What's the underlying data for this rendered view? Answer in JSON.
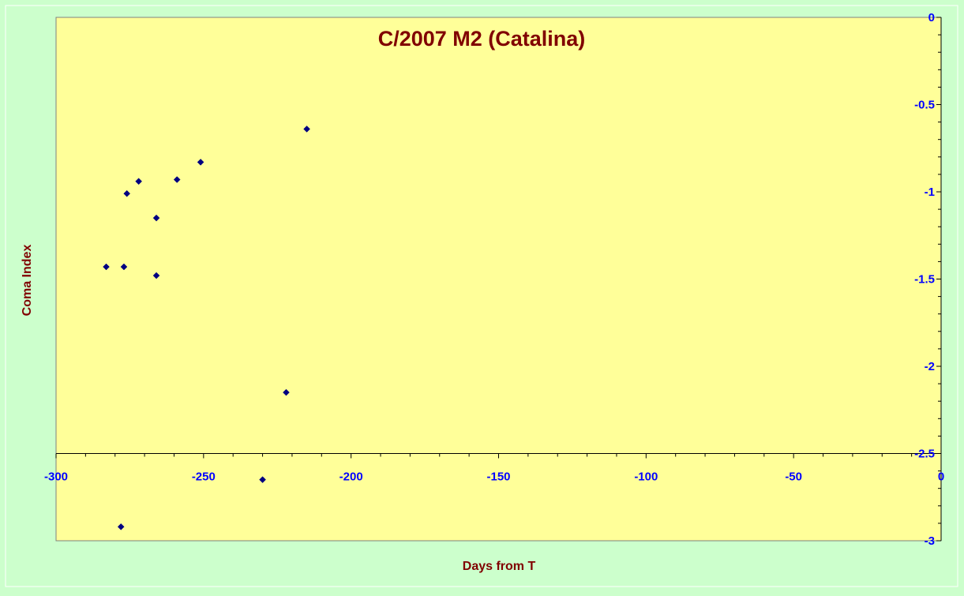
{
  "chart_data": {
    "type": "scatter",
    "title": "C/2007 M2 (Catalina)",
    "xlabel": "Days from T",
    "ylabel": "Coma Index",
    "xlim": [
      -300,
      0
    ],
    "ylim": [
      -3,
      0
    ],
    "x_ticks": [
      "-300",
      "-250",
      "-200",
      "-150",
      "-100",
      "-50",
      "0"
    ],
    "y_ticks": [
      "0",
      "-0.5",
      "-1",
      "-1.5",
      "-2",
      "-2.5",
      "-3"
    ],
    "x_axis_crosses_y_at": -2.5,
    "y_axis_position": "right",
    "grid": false,
    "legend": "none",
    "colors": {
      "chart_background": "#ccffcc",
      "plot_background": "#ffff99",
      "title": "#800000",
      "axis_labels": "#800000",
      "tick_labels": "#0000ff",
      "marker": "#000080"
    },
    "series": [
      {
        "points": [
          {
            "x": -283,
            "y": -1.43
          },
          {
            "x": -277,
            "y": -1.43
          },
          {
            "x": -276,
            "y": -1.01
          },
          {
            "x": -272,
            "y": -0.94
          },
          {
            "x": -266,
            "y": -1.15
          },
          {
            "x": -266,
            "y": -1.48
          },
          {
            "x": -259,
            "y": -0.93
          },
          {
            "x": -251,
            "y": -0.83
          },
          {
            "x": -215,
            "y": -0.64
          },
          {
            "x": -222,
            "y": -2.15
          },
          {
            "x": -230,
            "y": -2.65
          },
          {
            "x": -278,
            "y": -2.92
          }
        ]
      }
    ]
  }
}
